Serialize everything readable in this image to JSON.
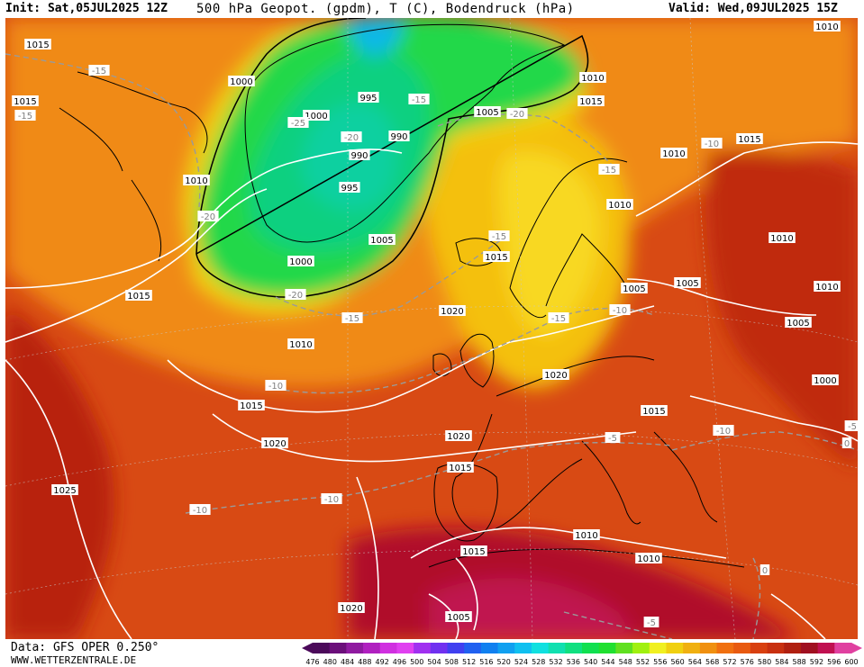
{
  "header": {
    "init": "Init: Sat,05JUL2025 12Z",
    "title": "500 hPa Geopot. (gpdm), T (C), Bodendruck (hPa)",
    "valid": "Valid: Wed,09JUL2025 15Z"
  },
  "footer": {
    "data_source": "Data: GFS OPER 0.250°",
    "website": "WWW.WETTERZENTRALE.DE"
  },
  "legend": {
    "values": [
      "476",
      "480",
      "484",
      "488",
      "492",
      "496",
      "500",
      "504",
      "508",
      "512",
      "516",
      "520",
      "524",
      "528",
      "532",
      "536",
      "540",
      "544",
      "548",
      "552",
      "556",
      "560",
      "564",
      "568",
      "572",
      "576",
      "580",
      "584",
      "588",
      "592",
      "596",
      "600"
    ],
    "colors": [
      "#4b0a5a",
      "#6b0f7a",
      "#8f1aa0",
      "#b020c0",
      "#d030e0",
      "#e040f0",
      "#a030f0",
      "#7030f0",
      "#4040f0",
      "#2060f0",
      "#1080f0",
      "#10a0f0",
      "#10c0f0",
      "#10e0e0",
      "#10e0b0",
      "#10e080",
      "#10e050",
      "#20e030",
      "#60e020",
      "#a0f010",
      "#f0f020",
      "#f0d010",
      "#f0b010",
      "#f09010",
      "#f07010",
      "#e85a10",
      "#d84010",
      "#c83010",
      "#b02010",
      "#a01020",
      "#c01050",
      "#e040a0"
    ]
  },
  "pressure_labels": [
    "1015",
    "1015",
    "1000",
    "1010",
    "1015",
    "995",
    "1000",
    "990",
    "990",
    "995",
    "1005",
    "1000",
    "1005",
    "1010",
    "1015",
    "1010",
    "1010",
    "1015",
    "1010",
    "1020",
    "1015",
    "1010",
    "1005",
    "1005",
    "1010",
    "1005",
    "1015",
    "1010",
    "1020",
    "1000",
    "1020",
    "1020",
    "1015",
    "1025",
    "1015",
    "1015",
    "1010",
    "1020",
    "1010",
    "1005"
  ],
  "temp_labels": [
    "-15",
    "-15",
    "-25",
    "-20",
    "-20",
    "-20",
    "-15",
    "-15",
    "-10",
    "-15",
    "-15",
    "-15",
    "-20",
    "-10",
    "-10",
    "-10",
    "-10",
    "-5",
    "-10",
    "-5",
    "0",
    "-5",
    "0"
  ]
}
